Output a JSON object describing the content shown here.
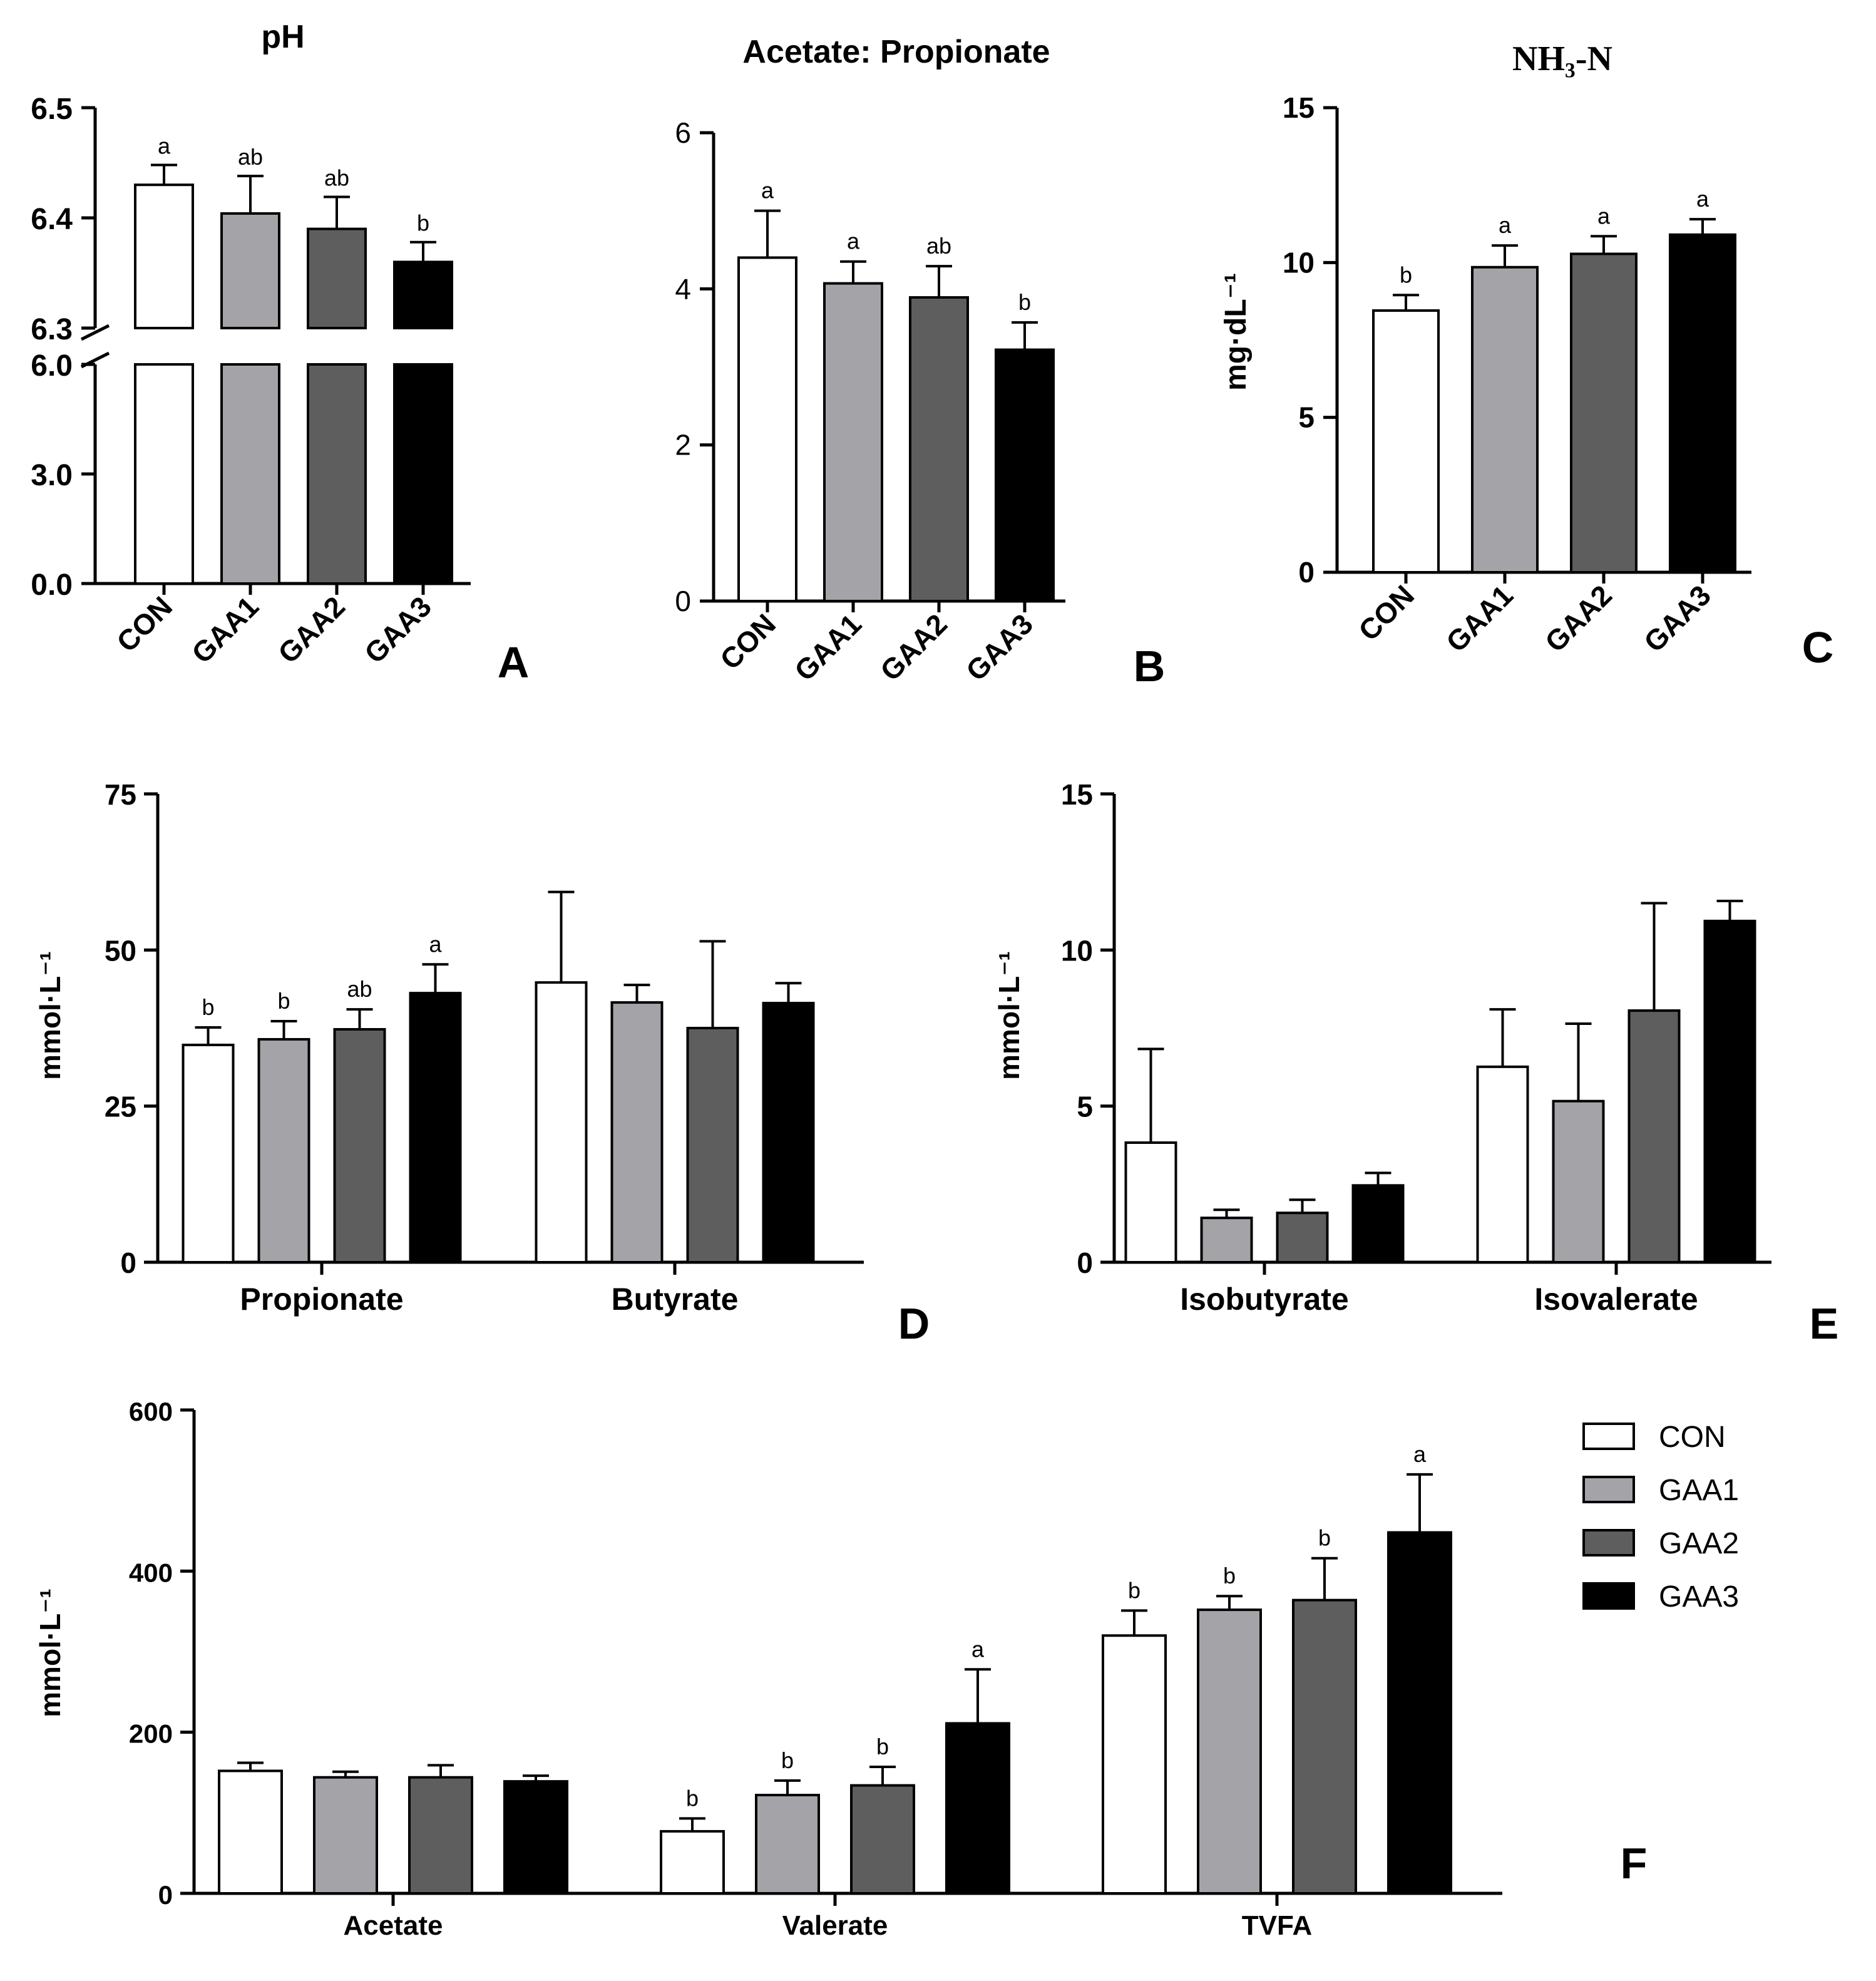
{
  "colors": {
    "CON": "#ffffff",
    "GAA1": "#a3a3a8",
    "GAA2": "#5e5e5e",
    "GAA3": "#000000",
    "outline": "#000000"
  },
  "chart_data": [
    {
      "panel": "A",
      "type": "bar",
      "title": "pH",
      "ylabel": "",
      "categories": [
        "CON",
        "GAA1",
        "GAA2",
        "GAA3"
      ],
      "values": [
        6.43,
        6.404,
        6.39,
        6.36
      ],
      "errors": [
        0.018,
        0.034,
        0.029,
        0.018
      ],
      "letters": [
        "a",
        "ab",
        "ab",
        "b"
      ],
      "axis_break": {
        "lower": [
          0.0,
          6.0
        ],
        "upper": [
          6.3,
          6.5
        ]
      },
      "yticks_lower": [
        "0.0",
        "3.0",
        "6.0"
      ],
      "yticks_upper": [
        "6.3",
        "6.4",
        "6.5"
      ]
    },
    {
      "panel": "B",
      "type": "bar",
      "title": "Acetate: Propionate",
      "ylabel": "",
      "categories": [
        "CON",
        "GAA1",
        "GAA2",
        "GAA3"
      ],
      "values": [
        4.4,
        4.07,
        3.89,
        3.22
      ],
      "errors": [
        0.6,
        0.28,
        0.4,
        0.35
      ],
      "letters": [
        "a",
        "a",
        "ab",
        "b"
      ],
      "ylim": [
        0,
        6
      ],
      "yticks": [
        "0",
        "2",
        "4",
        "6"
      ]
    },
    {
      "panel": "C",
      "type": "bar",
      "title": "NH₃-N",
      "ylabel": "mg·dL⁻¹",
      "categories": [
        "CON",
        "GAA1",
        "GAA2",
        "GAA3"
      ],
      "values": [
        8.45,
        9.85,
        10.28,
        10.9
      ],
      "errors": [
        0.5,
        0.7,
        0.57,
        0.5
      ],
      "letters": [
        "b",
        "a",
        "a",
        "a"
      ],
      "ylim": [
        0,
        15
      ],
      "yticks": [
        "0",
        "5",
        "10",
        "15"
      ]
    },
    {
      "panel": "D",
      "type": "bar",
      "ylabel": "mmol·L⁻¹",
      "categories": [
        "Propionate",
        "Butyrate"
      ],
      "series": [
        {
          "name": "CON",
          "values": [
            34.8,
            44.8
          ],
          "errors": [
            2.8,
            14.5
          ]
        },
        {
          "name": "GAA1",
          "values": [
            35.7,
            41.6
          ],
          "errors": [
            2.9,
            2.8
          ]
        },
        {
          "name": "GAA2",
          "values": [
            37.3,
            37.5
          ],
          "errors": [
            3.2,
            13.9
          ]
        },
        {
          "name": "GAA3",
          "values": [
            43.1,
            41.5
          ],
          "errors": [
            4.6,
            3.2
          ]
        }
      ],
      "letters": [
        [
          "b",
          "b",
          "ab",
          "a"
        ],
        [
          "",
          "",
          "",
          ""
        ]
      ],
      "ylim": [
        0,
        75
      ],
      "yticks": [
        "0",
        "25",
        "50",
        "75"
      ]
    },
    {
      "panel": "E",
      "type": "bar",
      "ylabel": "mmol·L⁻¹",
      "categories": [
        "Isobutyrate",
        "Isovalerate"
      ],
      "series": [
        {
          "name": "CON",
          "values": [
            3.83,
            6.26
          ],
          "errors": [
            3.0,
            1.84
          ]
        },
        {
          "name": "GAA1",
          "values": [
            1.42,
            5.16
          ],
          "errors": [
            0.26,
            2.48
          ]
        },
        {
          "name": "GAA2",
          "values": [
            1.58,
            8.06
          ],
          "errors": [
            0.42,
            3.44
          ]
        },
        {
          "name": "GAA3",
          "values": [
            2.46,
            10.93
          ],
          "errors": [
            0.4,
            0.64
          ]
        }
      ],
      "ylim": [
        0,
        15
      ],
      "yticks": [
        "0",
        "5",
        "10",
        "15"
      ]
    },
    {
      "panel": "F",
      "type": "bar",
      "ylabel": "mmol·L⁻¹",
      "categories": [
        "Acetate",
        "Valerate",
        "TVFA"
      ],
      "series": [
        {
          "name": "CON",
          "values": [
            152,
            77,
            320
          ],
          "errors": [
            10,
            16,
            31
          ]
        },
        {
          "name": "GAA1",
          "values": [
            144,
            122,
            352
          ],
          "errors": [
            7,
            18,
            17
          ]
        },
        {
          "name": "GAA2",
          "values": [
            144,
            134,
            364
          ],
          "errors": [
            15,
            23,
            52
          ]
        },
        {
          "name": "GAA3",
          "values": [
            139,
            211,
            448
          ],
          "errors": [
            7,
            67,
            72
          ]
        }
      ],
      "letters": [
        [
          "",
          "",
          "",
          ""
        ],
        [
          "b",
          "b",
          "b",
          "a"
        ],
        [
          "b",
          "b",
          "b",
          "a"
        ]
      ],
      "ylim": [
        0,
        600
      ],
      "yticks": [
        "0",
        "200",
        "400",
        "600"
      ],
      "legend": {
        "placement": "right",
        "entries": [
          "CON",
          "GAA1",
          "GAA2",
          "GAA3"
        ]
      }
    }
  ]
}
